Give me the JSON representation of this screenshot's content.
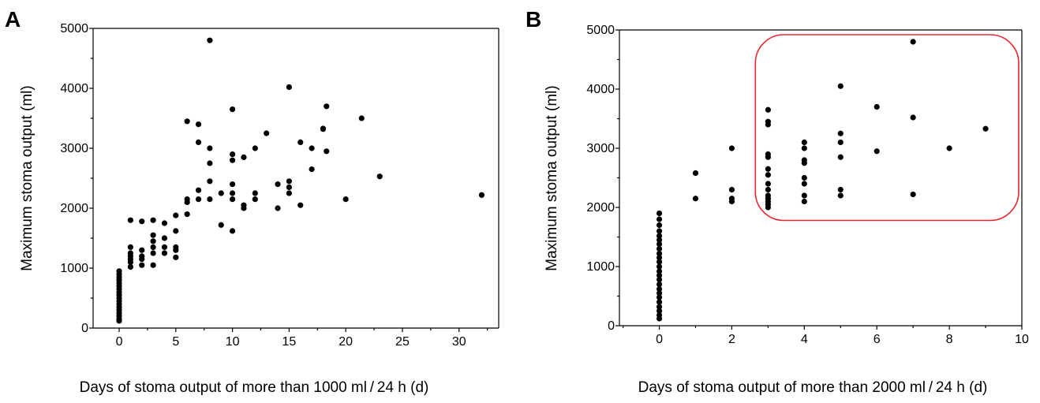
{
  "chart_data": [
    {
      "type": "scatter",
      "panel": "A",
      "xlabel": "Days of stoma output of more than 1000 ml / 24 h (d)",
      "ylabel": "Maximum stoma output (ml)",
      "xlim": [
        -2.3,
        33.5
      ],
      "ylim": [
        0,
        5000
      ],
      "xticks": [
        0,
        5,
        10,
        15,
        20,
        25,
        30
      ],
      "yticks": [
        0,
        1000,
        2000,
        3000,
        4000,
        5000
      ],
      "points": [
        [
          0,
          120
        ],
        [
          0,
          150
        ],
        [
          0,
          200
        ],
        [
          0,
          250
        ],
        [
          0,
          300
        ],
        [
          0,
          350
        ],
        [
          0,
          400
        ],
        [
          0,
          450
        ],
        [
          0,
          500
        ],
        [
          0,
          550
        ],
        [
          0,
          600
        ],
        [
          0,
          650
        ],
        [
          0,
          700
        ],
        [
          0,
          750
        ],
        [
          0,
          800
        ],
        [
          0,
          850
        ],
        [
          0,
          900
        ],
        [
          0,
          950
        ],
        [
          1,
          1020
        ],
        [
          1,
          1100
        ],
        [
          1,
          1150
        ],
        [
          1,
          1200
        ],
        [
          1,
          1250
        ],
        [
          1,
          1350
        ],
        [
          1,
          1800
        ],
        [
          2,
          1050
        ],
        [
          2,
          1150
        ],
        [
          2,
          1200
        ],
        [
          2,
          1300
        ],
        [
          2,
          1780
        ],
        [
          3,
          1050
        ],
        [
          3,
          1250
        ],
        [
          3,
          1350
        ],
        [
          3,
          1450
        ],
        [
          3,
          1550
        ],
        [
          3,
          1800
        ],
        [
          4,
          1250
        ],
        [
          4,
          1350
        ],
        [
          4,
          1500
        ],
        [
          4,
          1750
        ],
        [
          5,
          1180
        ],
        [
          5,
          1300
        ],
        [
          5,
          1350
        ],
        [
          5,
          1620
        ],
        [
          5,
          1880
        ],
        [
          6,
          1900
        ],
        [
          6,
          2100
        ],
        [
          6,
          2150
        ],
        [
          6,
          3450
        ],
        [
          7,
          2150
        ],
        [
          7,
          2300
        ],
        [
          7,
          3100
        ],
        [
          7,
          3400
        ],
        [
          8,
          2150
        ],
        [
          8,
          2450
        ],
        [
          8,
          2750
        ],
        [
          8,
          3000
        ],
        [
          8,
          4800
        ],
        [
          9,
          1720
        ],
        [
          9,
          2250
        ],
        [
          10,
          1620
        ],
        [
          10,
          2150
        ],
        [
          10,
          2250
        ],
        [
          10,
          2400
        ],
        [
          10,
          2800
        ],
        [
          10,
          2900
        ],
        [
          10,
          3650
        ],
        [
          11,
          2000
        ],
        [
          11,
          2050
        ],
        [
          11,
          2850
        ],
        [
          12,
          2150
        ],
        [
          12,
          2250
        ],
        [
          12,
          3000
        ],
        [
          13,
          3250
        ],
        [
          14,
          2000
        ],
        [
          14,
          2400
        ],
        [
          15,
          2250
        ],
        [
          15,
          2350
        ],
        [
          15,
          2450
        ],
        [
          15,
          4020
        ],
        [
          16,
          2050
        ],
        [
          16,
          3100
        ],
        [
          17,
          2650
        ],
        [
          17,
          3000
        ],
        [
          18,
          3320
        ],
        [
          18,
          3330
        ],
        [
          18.3,
          2950
        ],
        [
          18.3,
          3700
        ],
        [
          20,
          2150
        ],
        [
          21.4,
          3500
        ],
        [
          23,
          2530
        ],
        [
          32,
          2220
        ]
      ]
    },
    {
      "type": "scatter",
      "panel": "B",
      "xlabel": "Days of stoma output of more than 2000 ml / 24 h (d)",
      "ylabel": "Maximum stoma output (ml)",
      "xlim": [
        -1.1,
        10
      ],
      "ylim": [
        0,
        5000
      ],
      "xticks": [
        0,
        2,
        4,
        6,
        8,
        10
      ],
      "yticks": [
        0,
        1000,
        2000,
        3000,
        4000,
        5000
      ],
      "highlight_box": {
        "x": [
          2.65,
          10.0
        ],
        "y": [
          1780,
          4920
        ],
        "color": "#e8262d"
      },
      "points": [
        [
          0,
          120
        ],
        [
          0,
          180
        ],
        [
          0,
          250
        ],
        [
          0,
          320
        ],
        [
          0,
          400
        ],
        [
          0,
          480
        ],
        [
          0,
          550
        ],
        [
          0,
          620
        ],
        [
          0,
          700
        ],
        [
          0,
          780
        ],
        [
          0,
          850
        ],
        [
          0,
          920
        ],
        [
          0,
          1000
        ],
        [
          0,
          1080
        ],
        [
          0,
          1150
        ],
        [
          0,
          1220
        ],
        [
          0,
          1300
        ],
        [
          0,
          1380
        ],
        [
          0,
          1450
        ],
        [
          0,
          1520
        ],
        [
          0,
          1600
        ],
        [
          0,
          1700
        ],
        [
          0,
          1800
        ],
        [
          0,
          1900
        ],
        [
          1,
          2150
        ],
        [
          1,
          2580
        ],
        [
          2,
          2100
        ],
        [
          2,
          2150
        ],
        [
          2,
          2300
        ],
        [
          2,
          3000
        ],
        [
          3,
          2000
        ],
        [
          3,
          2050
        ],
        [
          3,
          2100
        ],
        [
          3,
          2150
        ],
        [
          3,
          2200
        ],
        [
          3,
          2300
        ],
        [
          3,
          2400
        ],
        [
          3,
          2550
        ],
        [
          3,
          2650
        ],
        [
          3,
          2850
        ],
        [
          3,
          2900
        ],
        [
          3,
          3400
        ],
        [
          3,
          3450
        ],
        [
          3,
          3650
        ],
        [
          4,
          2100
        ],
        [
          4,
          2200
        ],
        [
          4,
          2400
        ],
        [
          4,
          2500
        ],
        [
          4,
          2750
        ],
        [
          4,
          2800
        ],
        [
          4,
          3000
        ],
        [
          4,
          3100
        ],
        [
          5,
          2200
        ],
        [
          5,
          2300
        ],
        [
          5,
          2850
        ],
        [
          5,
          3100
        ],
        [
          5,
          3250
        ],
        [
          5,
          4050
        ],
        [
          6,
          2950
        ],
        [
          6,
          3700
        ],
        [
          7,
          2220
        ],
        [
          7,
          3520
        ],
        [
          7,
          4800
        ],
        [
          8,
          3000
        ],
        [
          9,
          3330
        ]
      ]
    }
  ]
}
